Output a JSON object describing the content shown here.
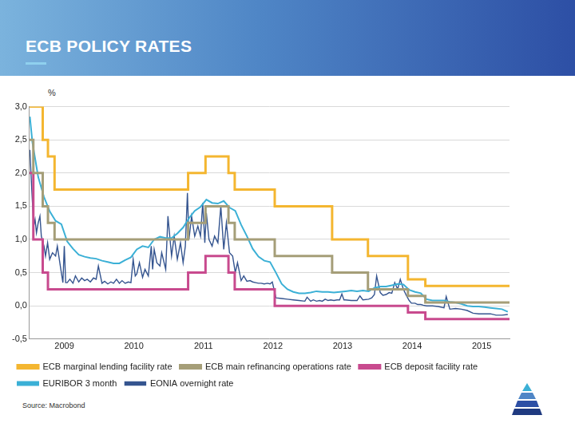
{
  "chart_data": {
    "type": "line",
    "title": "ECB POLICY RATES",
    "y_label": "%",
    "source": "Source: Macrobond",
    "xlim": [
      2009.0,
      2015.9
    ],
    "xticks": [
      {
        "value": 2009.5,
        "label": "2009"
      },
      {
        "value": 2010.5,
        "label": "2010"
      },
      {
        "value": 2011.5,
        "label": "2011"
      },
      {
        "value": 2012.5,
        "label": "2012"
      },
      {
        "value": 2013.5,
        "label": "2013"
      },
      {
        "value": 2014.5,
        "label": "2014"
      },
      {
        "value": 2015.5,
        "label": "2015"
      }
    ],
    "ylim": [
      -0.5,
      3.0
    ],
    "yticks": [
      {
        "value": -0.5,
        "label": "-0,5"
      },
      {
        "value": 0.0,
        "label": "0,0"
      },
      {
        "value": 0.5,
        "label": "0,5"
      },
      {
        "value": 1.0,
        "label": "1,0"
      },
      {
        "value": 1.5,
        "label": "1,5"
      },
      {
        "value": 2.0,
        "label": "2,0"
      },
      {
        "value": 2.5,
        "label": "2,5"
      },
      {
        "value": 3.0,
        "label": "3,0"
      }
    ],
    "grid": "y",
    "legend": "bottom",
    "series": [
      {
        "name": "ECB marginal lending facility rate",
        "color": "#f4b630",
        "line_style": "step",
        "x": [
          2009.0,
          2009.19,
          2009.265,
          2009.36,
          2011.28,
          2011.53,
          2011.86,
          2011.95,
          2012.525,
          2013.35,
          2013.865,
          2014.44,
          2014.69,
          2015.9
        ],
        "values": [
          3.0,
          2.5,
          2.25,
          1.75,
          2.0,
          2.25,
          2.0,
          1.75,
          1.5,
          1.0,
          0.75,
          0.4,
          0.3,
          0.3
        ]
      },
      {
        "name": "ECB main refinancing operations rate",
        "color": "#a59e78",
        "line_style": "step",
        "x": [
          2009.0,
          2009.055,
          2009.19,
          2009.265,
          2009.36,
          2011.28,
          2011.53,
          2011.86,
          2011.95,
          2012.525,
          2013.35,
          2013.865,
          2014.44,
          2014.69,
          2015.9
        ],
        "values": [
          2.5,
          2.0,
          1.5,
          1.25,
          1.0,
          1.25,
          1.5,
          1.25,
          1.0,
          0.75,
          0.5,
          0.25,
          0.15,
          0.05,
          0.05
        ]
      },
      {
        "name": "ECB deposit facility rate",
        "color": "#c84a8e",
        "line_style": "step",
        "x": [
          2009.0,
          2009.055,
          2009.19,
          2009.265,
          2011.28,
          2011.53,
          2011.86,
          2011.95,
          2012.525,
          2014.44,
          2014.69,
          2015.9
        ],
        "values": [
          2.0,
          1.0,
          0.5,
          0.25,
          0.5,
          0.75,
          0.5,
          0.25,
          0.0,
          -0.1,
          -0.2,
          -0.2
        ]
      },
      {
        "name": "EURIBOR 3 month",
        "color": "#3bb0d6",
        "line_style": "solid",
        "x": [
          2009.005,
          2009.042,
          2009.125,
          2009.208,
          2009.292,
          2009.375,
          2009.458,
          2009.542,
          2009.625,
          2009.708,
          2009.792,
          2009.875,
          2009.958,
          2010.042,
          2010.125,
          2010.208,
          2010.292,
          2010.375,
          2010.458,
          2010.542,
          2010.625,
          2010.708,
          2010.792,
          2010.875,
          2010.958,
          2011.042,
          2011.125,
          2011.208,
          2011.292,
          2011.375,
          2011.458,
          2011.542,
          2011.625,
          2011.708,
          2011.792,
          2011.875,
          2011.958,
          2012.042,
          2012.125,
          2012.208,
          2012.292,
          2012.375,
          2012.458,
          2012.542,
          2012.625,
          2012.708,
          2012.792,
          2012.875,
          2012.958,
          2013.042,
          2013.125,
          2013.208,
          2013.292,
          2013.375,
          2013.458,
          2013.542,
          2013.625,
          2013.708,
          2013.792,
          2013.875,
          2013.958,
          2014.042,
          2014.125,
          2014.208,
          2014.292,
          2014.375,
          2014.458,
          2014.542,
          2014.625,
          2014.708,
          2014.792,
          2014.875,
          2014.958,
          2015.042,
          2015.125,
          2015.208,
          2015.292,
          2015.375,
          2015.458,
          2015.542,
          2015.625,
          2015.708,
          2015.792,
          2015.875
        ],
        "values": [
          2.85,
          2.46,
          1.94,
          1.64,
          1.42,
          1.28,
          1.23,
          0.97,
          0.86,
          0.77,
          0.74,
          0.72,
          0.71,
          0.68,
          0.66,
          0.64,
          0.64,
          0.69,
          0.73,
          0.85,
          0.9,
          0.88,
          1.0,
          1.04,
          1.02,
          1.02,
          1.09,
          1.18,
          1.32,
          1.43,
          1.49,
          1.6,
          1.55,
          1.54,
          1.58,
          1.48,
          1.43,
          1.22,
          1.05,
          0.86,
          0.74,
          0.68,
          0.66,
          0.5,
          0.33,
          0.25,
          0.21,
          0.19,
          0.19,
          0.2,
          0.22,
          0.21,
          0.21,
          0.2,
          0.21,
          0.22,
          0.23,
          0.22,
          0.23,
          0.22,
          0.27,
          0.29,
          0.29,
          0.31,
          0.33,
          0.32,
          0.24,
          0.21,
          0.19,
          0.1,
          0.08,
          0.08,
          0.08,
          0.06,
          0.05,
          0.03,
          0.0,
          -0.01,
          -0.01,
          -0.02,
          -0.03,
          -0.04,
          -0.05,
          -0.09
        ]
      },
      {
        "name": "EONIA overnight rate",
        "color": "#34548f",
        "line_style": "solid",
        "x": [
          2009.005,
          2009.03,
          2009.06,
          2009.08,
          2009.1,
          2009.125,
          2009.15,
          2009.17,
          2009.208,
          2009.23,
          2009.26,
          2009.29,
          2009.33,
          2009.375,
          2009.4,
          2009.45,
          2009.48,
          2009.5,
          2009.52,
          2009.542,
          2009.58,
          2009.625,
          2009.66,
          2009.708,
          2009.75,
          2009.792,
          2009.83,
          2009.875,
          2009.92,
          2009.958,
          2009.99,
          2010.042,
          2010.08,
          2010.125,
          2010.17,
          2010.208,
          2010.25,
          2010.292,
          2010.33,
          2010.375,
          2010.42,
          2010.458,
          2010.49,
          2010.52,
          2010.542,
          2010.58,
          2010.625,
          2010.66,
          2010.708,
          2010.75,
          2010.77,
          2010.792,
          2010.83,
          2010.875,
          2010.9,
          2010.958,
          2010.99,
          2011.042,
          2011.08,
          2011.125,
          2011.17,
          2011.208,
          2011.24,
          2011.27,
          2011.292,
          2011.33,
          2011.375,
          2011.42,
          2011.458,
          2011.49,
          2011.52,
          2011.542,
          2011.58,
          2011.625,
          2011.66,
          2011.708,
          2011.75,
          2011.792,
          2011.83,
          2011.875,
          2011.92,
          2011.958,
          2011.99,
          2012.042,
          2012.08,
          2012.125,
          2012.17,
          2012.208,
          2012.25,
          2012.292,
          2012.33,
          2012.375,
          2012.42,
          2012.458,
          2012.49,
          2012.53,
          2012.542,
          2012.625,
          2012.708,
          2012.792,
          2012.875,
          2012.958,
          2012.99,
          2013.042,
          2013.08,
          2013.125,
          2013.17,
          2013.208,
          2013.25,
          2013.292,
          2013.33,
          2013.375,
          2013.42,
          2013.458,
          2013.49,
          2013.52,
          2013.542,
          2013.625,
          2013.708,
          2013.75,
          2013.792,
          2013.875,
          2013.92,
          2013.958,
          2013.99,
          2014.042,
          2014.08,
          2014.125,
          2014.17,
          2014.208,
          2014.25,
          2014.292,
          2014.33,
          2014.375,
          2014.42,
          2014.458,
          2014.49,
          2014.542,
          2014.58,
          2014.625,
          2014.66,
          2014.708,
          2014.792,
          2014.875,
          2014.958,
          2014.99,
          2015.042,
          2015.125,
          2015.208,
          2015.292,
          2015.375,
          2015.458,
          2015.542,
          2015.625,
          2015.708,
          2015.792,
          2015.875
        ],
        "values": [
          2.35,
          1.8,
          1.2,
          1.3,
          1.1,
          1.25,
          1.35,
          1.05,
          0.9,
          0.75,
          0.95,
          0.7,
          0.8,
          0.75,
          0.9,
          0.55,
          0.35,
          0.9,
          0.35,
          0.35,
          0.4,
          0.34,
          0.45,
          0.36,
          0.42,
          0.38,
          0.4,
          0.36,
          0.42,
          0.4,
          0.6,
          0.34,
          0.37,
          0.33,
          0.36,
          0.34,
          0.4,
          0.34,
          0.38,
          0.34,
          0.36,
          0.35,
          0.7,
          0.45,
          0.48,
          0.65,
          0.43,
          0.55,
          0.45,
          0.9,
          0.55,
          0.85,
          0.65,
          0.6,
          0.8,
          0.55,
          1.35,
          0.75,
          1.05,
          0.7,
          0.95,
          0.65,
          0.9,
          1.7,
          1.0,
          1.35,
          1.05,
          1.2,
          1.05,
          1.55,
          0.95,
          1.4,
          1.0,
          0.9,
          1.05,
          0.95,
          1.5,
          0.85,
          1.25,
          0.8,
          0.75,
          0.5,
          0.65,
          0.38,
          0.45,
          0.37,
          0.38,
          0.36,
          0.35,
          0.34,
          0.34,
          0.33,
          0.34,
          0.33,
          0.36,
          0.18,
          0.12,
          0.11,
          0.1,
          0.09,
          0.08,
          0.07,
          0.13,
          0.07,
          0.09,
          0.07,
          0.08,
          0.07,
          0.1,
          0.08,
          0.09,
          0.08,
          0.09,
          0.09,
          0.18,
          0.09,
          0.09,
          0.08,
          0.08,
          0.15,
          0.09,
          0.1,
          0.12,
          0.17,
          0.45,
          0.2,
          0.16,
          0.17,
          0.2,
          0.19,
          0.35,
          0.25,
          0.4,
          0.25,
          0.15,
          0.08,
          0.04,
          0.04,
          0.02,
          0.02,
          0.01,
          0.0,
          0.0,
          -0.01,
          -0.03,
          0.14,
          -0.05,
          -0.04,
          -0.05,
          -0.07,
          -0.11,
          -0.12,
          -0.12,
          -0.12,
          -0.14,
          -0.14,
          -0.13
        ]
      }
    ]
  }
}
